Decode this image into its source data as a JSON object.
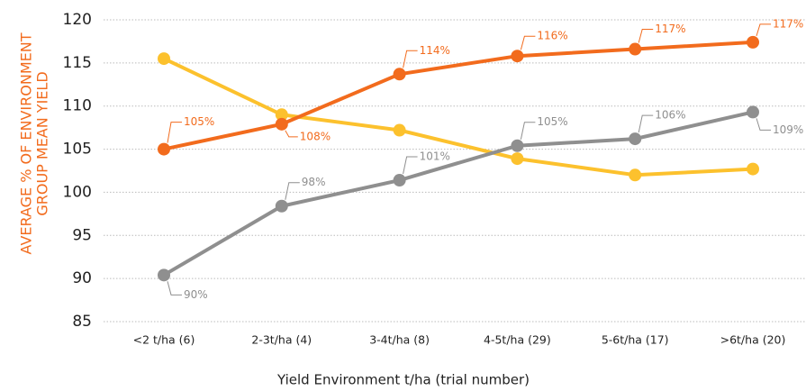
{
  "chart_data": {
    "type": "line",
    "y_label_lines": [
      "AVERAGE % OF ENVIRONMENT",
      "GROUP MEAN YIELD"
    ],
    "x_label": "Yield Environment t/ha (trial number)",
    "categories": [
      "<2 t/ha (6)",
      "2-3t/ha (4)",
      "3-4t/ha (8)",
      "4-5t/ha (29)",
      "5-6t/ha (17)",
      ">6t/ha (20)"
    ],
    "series": [
      {
        "color": "#f26b1d",
        "values": [
          105,
          107.9,
          113.7,
          115.8,
          116.6,
          117.4
        ],
        "value_labels": [
          "105%",
          "108%",
          "114%",
          "116%",
          "117%",
          "117%"
        ]
      },
      {
        "color": "#8f8f8f",
        "values": [
          90.4,
          98.4,
          101.4,
          105.4,
          106.2,
          109.3
        ],
        "value_labels": [
          "90%",
          "98%",
          "101%",
          "105%",
          "106%",
          "109%"
        ]
      },
      {
        "color": "#fcc12d",
        "values": [
          115.5,
          109,
          107.2,
          103.9,
          102,
          102.7
        ]
      }
    ],
    "ylim": [
      85,
      120
    ],
    "yticks": [
      85,
      90,
      95,
      100,
      105,
      110,
      115,
      120
    ],
    "grid": true,
    "y_label_color": "#f26b1d"
  }
}
